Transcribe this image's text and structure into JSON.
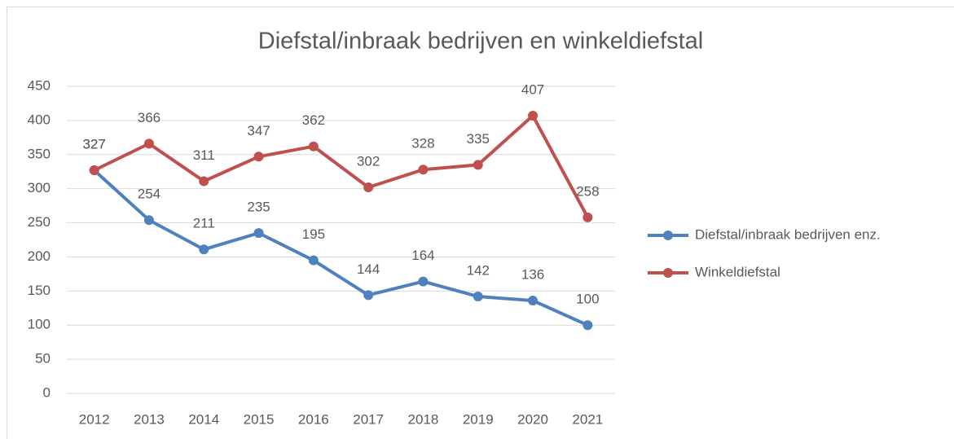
{
  "chart_data": {
    "type": "line",
    "title": "Diefstal/inbraak bedrijven en winkeldiefstal",
    "categories": [
      "2012",
      "2013",
      "2014",
      "2015",
      "2016",
      "2017",
      "2018",
      "2019",
      "2020",
      "2021"
    ],
    "series": [
      {
        "name": "Diefstal/inbraak bedrijven enz.",
        "color": "#4f81bd",
        "values": [
          327,
          254,
          211,
          235,
          195,
          144,
          164,
          142,
          136,
          100
        ]
      },
      {
        "name": "Winkeldiefstal",
        "color": "#c0504d",
        "values": [
          327,
          366,
          311,
          347,
          362,
          302,
          328,
          335,
          407,
          258
        ]
      }
    ],
    "ylim": [
      0,
      450
    ],
    "yticks": [
      0,
      50,
      100,
      150,
      200,
      250,
      300,
      350,
      400,
      450
    ],
    "grid": true,
    "legend": "right"
  }
}
